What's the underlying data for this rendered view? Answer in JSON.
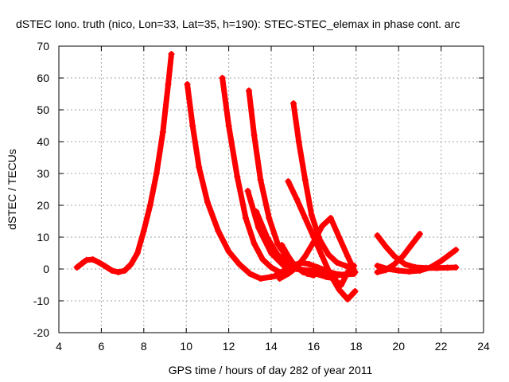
{
  "chart_data": {
    "type": "scatter",
    "title": "dSTEC Iono. truth (nico, Lon=33, Lat=35, h=190): STEC-STEC_elemax in phase cont. arc",
    "xlabel": "GPS time / hours of day 282 of year 2011",
    "ylabel": "dSTEC  / TECUs",
    "xlim": [
      4,
      24
    ],
    "ylim": [
      -20,
      70
    ],
    "x_ticks": [
      4,
      6,
      8,
      10,
      12,
      14,
      16,
      18,
      20,
      22,
      24
    ],
    "y_ticks": [
      -20,
      -10,
      0,
      10,
      20,
      30,
      40,
      50,
      60,
      70
    ],
    "grid": true,
    "marker": "plus",
    "marker_color": "#ff0000",
    "series": [
      {
        "x": [
          4.85,
          5.1,
          5.3,
          5.6,
          5.9,
          6.2,
          6.5,
          6.8,
          7.1,
          7.4,
          7.7,
          8.0,
          8.3,
          8.6,
          8.9,
          9.15,
          9.3
        ],
        "y": [
          0.5,
          1.8,
          2.8,
          3.0,
          2.0,
          0.8,
          -0.5,
          -1.0,
          -0.5,
          1.5,
          5.0,
          12.0,
          20.0,
          30.0,
          43.0,
          58.0,
          67.5
        ]
      },
      {
        "x": [
          10.05,
          10.3,
          10.6,
          11.0,
          11.5,
          12.0,
          12.5,
          13.0,
          13.5,
          14.0,
          14.4
        ],
        "y": [
          58.0,
          45.0,
          32.0,
          21.0,
          12.0,
          5.5,
          1.5,
          -1.5,
          -3.0,
          -2.5,
          -2.0
        ]
      },
      {
        "x": [
          11.7,
          12.0,
          12.4,
          12.8,
          13.2,
          13.6,
          14.0,
          14.4
        ],
        "y": [
          60.0,
          45.0,
          29.0,
          16.0,
          8.0,
          3.0,
          0.5,
          -1.0
        ]
      },
      {
        "x": [
          12.95,
          13.2,
          13.5,
          13.9,
          14.3,
          14.8,
          15.3
        ],
        "y": [
          56.0,
          42.0,
          28.0,
          16.0,
          8.0,
          3.0,
          0.5
        ]
      },
      {
        "x": [
          12.9,
          13.4,
          14.0,
          14.6,
          15.2,
          15.8,
          16.2
        ],
        "y": [
          24.5,
          13.0,
          5.0,
          1.0,
          0.0,
          -0.5,
          -1.0
        ]
      },
      {
        "x": [
          13.3,
          13.8,
          14.3,
          14.9,
          15.5,
          16.1,
          16.6,
          17.0
        ],
        "y": [
          18.0,
          10.0,
          4.5,
          1.0,
          -0.5,
          -1.5,
          -2.5,
          -3.0
        ]
      },
      {
        "x": [
          15.05,
          15.3,
          15.6,
          15.9,
          16.3,
          16.7,
          17.1,
          17.5,
          17.85
        ],
        "y": [
          52.0,
          40.0,
          28.0,
          17.0,
          9.0,
          4.5,
          2.0,
          1.0,
          0.5
        ]
      },
      {
        "x": [
          14.8,
          15.2,
          15.6,
          16.0,
          16.4,
          16.8,
          17.2,
          17.6,
          17.95
        ],
        "y": [
          27.5,
          22.0,
          16.0,
          10.0,
          4.0,
          -2.0,
          -6.5,
          -9.5,
          -7.0
        ]
      },
      {
        "x": [
          14.2,
          14.6,
          15.0,
          15.4,
          15.8,
          16.2,
          16.6,
          17.0,
          17.4,
          17.9
        ],
        "y": [
          -2.0,
          -0.5,
          1.0,
          2.0,
          1.5,
          0.5,
          -0.5,
          -1.5,
          -1.8,
          -1.5
        ]
      },
      {
        "x": [
          14.4,
          14.8,
          15.2,
          15.6,
          16.0,
          16.4,
          16.8,
          17.2,
          17.6,
          17.95
        ],
        "y": [
          -3.0,
          -1.5,
          0.5,
          4.0,
          8.5,
          13.5,
          16.0,
          10.0,
          4.0,
          -1.0
        ]
      },
      {
        "x": [
          16.6,
          16.8,
          17.0,
          17.3,
          17.6,
          17.9
        ],
        "y": [
          0.5,
          -1.5,
          -3.5,
          -5.0,
          -1.0,
          1.0
        ]
      },
      {
        "x": [
          15.5,
          15.9,
          16.3,
          16.7,
          17.1,
          17.5,
          17.9
        ],
        "y": [
          -1.0,
          -1.0,
          -1.5,
          -2.0,
          -2.0,
          -1.8,
          -1.5
        ]
      },
      {
        "x": [
          14.5,
          14.8,
          15.1,
          15.4,
          15.7,
          16.0
        ],
        "y": [
          7.5,
          4.0,
          1.0,
          -0.5,
          -1.5,
          -2.0
        ]
      },
      {
        "x": [
          19.0,
          19.4,
          19.8,
          20.3,
          20.8,
          21.3,
          21.8,
          22.3,
          22.7
        ],
        "y": [
          10.5,
          7.0,
          4.0,
          1.5,
          0.5,
          0.3,
          0.3,
          0.4,
          0.5
        ]
      },
      {
        "x": [
          19.0,
          19.4,
          19.8,
          20.2,
          20.6,
          21.0
        ],
        "y": [
          -1.0,
          -0.3,
          1.5,
          4.0,
          7.5,
          11.0
        ]
      },
      {
        "x": [
          19.0,
          19.5,
          20.0,
          20.5,
          21.0,
          21.5,
          22.0,
          22.4,
          22.7
        ],
        "y": [
          1.0,
          0.0,
          -0.5,
          -0.8,
          -0.5,
          0.5,
          2.5,
          4.5,
          6.0
        ]
      }
    ]
  }
}
